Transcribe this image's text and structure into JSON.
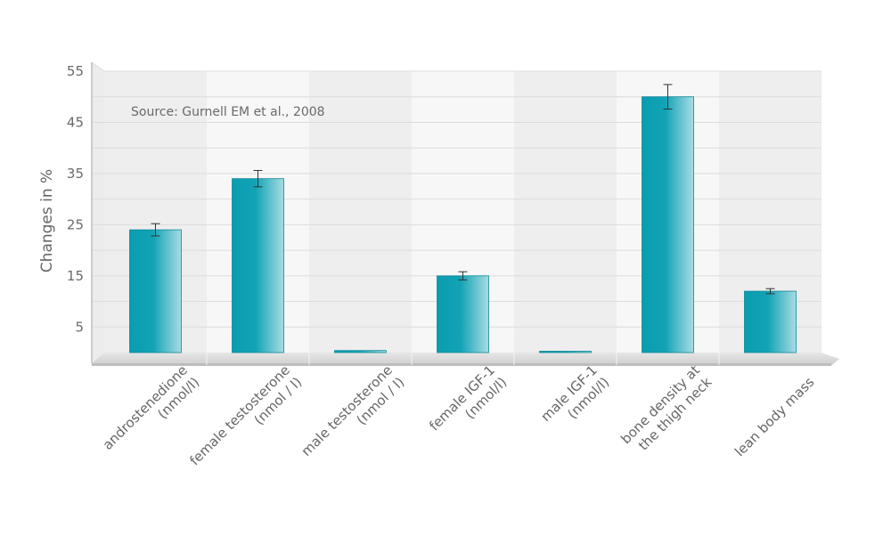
{
  "chart_data": {
    "type": "bar",
    "title": "",
    "xlabel": "",
    "ylabel": "Changes in %",
    "annotation": "Source: Gurnell EM et al., 2008",
    "ylim": [
      0,
      55
    ],
    "yticks": [
      5,
      15,
      25,
      35,
      45,
      55
    ],
    "categories": [
      [
        "androstenedione",
        "(nmol/l)"
      ],
      [
        "female testosterone",
        "(nmol / l)"
      ],
      [
        "male testosterone",
        "(nmol / l)"
      ],
      [
        "female IGF-1",
        "(nmol/l)"
      ],
      [
        "male IGF-1",
        "(nmol/l)"
      ],
      [
        "bone density at",
        "the thigh neck"
      ],
      [
        "lean body mass"
      ]
    ],
    "values": [
      24,
      34,
      0.4,
      15,
      0.2,
      50,
      12
    ],
    "errors": [
      1.2,
      1.6,
      0,
      0.8,
      0,
      2.4,
      0.5
    ],
    "grid": true,
    "colors": {
      "bar_dark": "#0a9db0",
      "bar_light": "#a8dce4",
      "bar_edge": "#0a8898"
    }
  }
}
